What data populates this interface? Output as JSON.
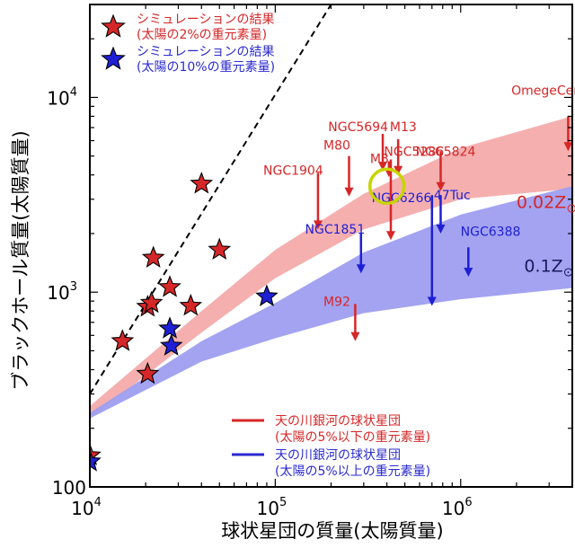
{
  "chart_data": {
    "type": "scatter",
    "xlabel": "球状星団の質量(太陽質量)",
    "ylabel": "ブラックホール質量(太陽質量)",
    "xscale": "log",
    "yscale": "log",
    "xlim": [
      10000,
      4000000
    ],
    "ylim": [
      100,
      30000
    ],
    "x_ticks": [
      {
        "value": 10000,
        "base": "10",
        "exp": "4"
      },
      {
        "value": 100000,
        "base": "10",
        "exp": "5"
      },
      {
        "value": 1000000,
        "base": "10",
        "exp": "6"
      }
    ],
    "y_ticks": [
      {
        "value": 100,
        "label": "100"
      },
      {
        "value": 1000,
        "base": "10",
        "exp": "3"
      },
      {
        "value": 10000,
        "base": "10",
        "exp": "4"
      }
    ],
    "legend_position": "top-left",
    "colors": {
      "red": "#d62728",
      "blue": "#1f1fd6",
      "red_band": "#f4a6a6",
      "blue_band": "#9e9ef0",
      "ring": "#c8d400"
    },
    "legend": [
      {
        "marker": "red-star",
        "line1": "シミュレーションの結果",
        "line2": "(太陽の2%の重元素量)",
        "color": "#d62728"
      },
      {
        "marker": "blue-star",
        "line1": "シミュレーションの結果",
        "line2": "(太陽の10%の重元素量)",
        "color": "#2a2ad0"
      }
    ],
    "legend2": [
      {
        "marker": "red-line",
        "line1": "天の川銀河の球状星団",
        "line2": "(太陽の5%以下の重元素量)",
        "color": "#d62728"
      },
      {
        "marker": "blue-line",
        "line1": "天の川銀河の球状星団",
        "line2": "(太陽の5%以上の重元素量)",
        "color": "#2a2ad0"
      }
    ],
    "series": [
      {
        "marker": "star",
        "color": "#d62728",
        "points": [
          [
            10000,
            145
          ],
          [
            15000,
            560
          ],
          [
            20500,
            380
          ],
          [
            20500,
            840
          ],
          [
            21500,
            880
          ],
          [
            22000,
            1500
          ],
          [
            27000,
            1060
          ],
          [
            35000,
            850
          ],
          [
            50000,
            1650
          ],
          [
            40000,
            3600
          ]
        ]
      },
      {
        "marker": "star",
        "color": "#1f1fd6",
        "points": [
          [
            10000,
            135
          ],
          [
            27000,
            650
          ],
          [
            27500,
            530
          ],
          [
            90000,
            950
          ]
        ]
      }
    ],
    "one_to_one_line": [
      [
        10000,
        300
      ],
      [
        200000,
        30000
      ]
    ],
    "bands": [
      {
        "label": "0.02Z",
        "subscript": "⊙",
        "color": "#f4a6a6",
        "upper": [
          [
            10000,
            260
          ],
          [
            40000,
            800
          ],
          [
            100000,
            1650
          ],
          [
            300000,
            3200
          ],
          [
            1000000,
            5500
          ],
          [
            4000000,
            8000
          ]
        ],
        "lower": [
          [
            10000,
            225
          ],
          [
            40000,
            620
          ],
          [
            100000,
            1180
          ],
          [
            300000,
            2100
          ],
          [
            1000000,
            3000
          ],
          [
            4000000,
            3400
          ]
        ],
        "label_pos": [
          2000000,
          2700
        ]
      },
      {
        "label": "0.1Z",
        "subscript": "⊙",
        "color": "#9e9ef0",
        "upper": [
          [
            10000,
            240
          ],
          [
            40000,
            560
          ],
          [
            100000,
            880
          ],
          [
            300000,
            1600
          ],
          [
            1000000,
            2500
          ],
          [
            4000000,
            3500
          ]
        ],
        "lower": [
          [
            10000,
            225
          ],
          [
            40000,
            440
          ],
          [
            100000,
            580
          ],
          [
            300000,
            780
          ],
          [
            1000000,
            920
          ],
          [
            4000000,
            1050
          ]
        ],
        "label_pos": [
          2200000,
          1270
        ]
      }
    ],
    "clusters": [
      {
        "name": "OmegeCen",
        "color": "#d62728",
        "x": 3800000,
        "y_top": 8000,
        "arrow_to": 5300,
        "label_pos": [
          2900000,
          10300
        ]
      },
      {
        "name": "NGC5694",
        "color": "#d62728",
        "x": 380000,
        "y_top": 6500,
        "arrow_to": 4200,
        "label_pos": [
          280000,
          6700
        ]
      },
      {
        "name": "M13",
        "color": "#d62728",
        "x": 460000,
        "y_top": 6100,
        "arrow_to": 4000,
        "label_pos": [
          490000,
          6700
        ]
      },
      {
        "name": "M80",
        "color": "#d62728",
        "x": 250000,
        "y_top": 5000,
        "arrow_to": 3100,
        "label_pos": [
          215000,
          5400
        ]
      },
      {
        "name": "M3",
        "color": "#d62728",
        "x": 410000,
        "y_top": 4700,
        "arrow_to": 3900,
        "label_pos": [
          365000,
          4600
        ]
      },
      {
        "name": "NGC5286",
        "color": "#d62728",
        "x": 420000,
        "y_top": 4800,
        "arrow_to": 1850,
        "label_pos": [
          560000,
          5000
        ]
      },
      {
        "name": "NGC5824",
        "color": "#d62728",
        "x": 780000,
        "y_top": 5300,
        "arrow_to": 3300,
        "label_pos": [
          830000,
          5000
        ]
      },
      {
        "name": "NGC1904",
        "color": "#d62728",
        "x": 170000,
        "y_top": 4100,
        "arrow_to": 2100,
        "label_pos": [
          125000,
          4000
        ]
      },
      {
        "name": "M92",
        "color": "#d62728",
        "x": 270000,
        "y_top": 870,
        "arrow_to": 560,
        "label_pos": [
          215000,
          850
        ]
      },
      {
        "name": "NGC6266",
        "color": "#1f1fd6",
        "x": 700000,
        "y_top": 3150,
        "arrow_to": 850,
        "label_pos": [
          480000,
          2900
        ]
      },
      {
        "name": "47Tuc",
        "color": "#1f1fd6",
        "x": 780000,
        "y_top": 3150,
        "arrow_to": 2000,
        "label_pos": [
          900000,
          3000
        ]
      },
      {
        "name": "NGC1851",
        "color": "#1f1fd6",
        "x": 290000,
        "y_top": 2000,
        "arrow_to": 1250,
        "label_pos": [
          210000,
          2000
        ]
      },
      {
        "name": "NGC6388",
        "color": "#1f1fd6",
        "x": 1100000,
        "y_top": 1700,
        "arrow_to": 1200,
        "label_pos": [
          1450000,
          1950
        ]
      }
    ],
    "highlight": {
      "x": 400000,
      "y": 3500,
      "color": "#c8d400"
    }
  }
}
